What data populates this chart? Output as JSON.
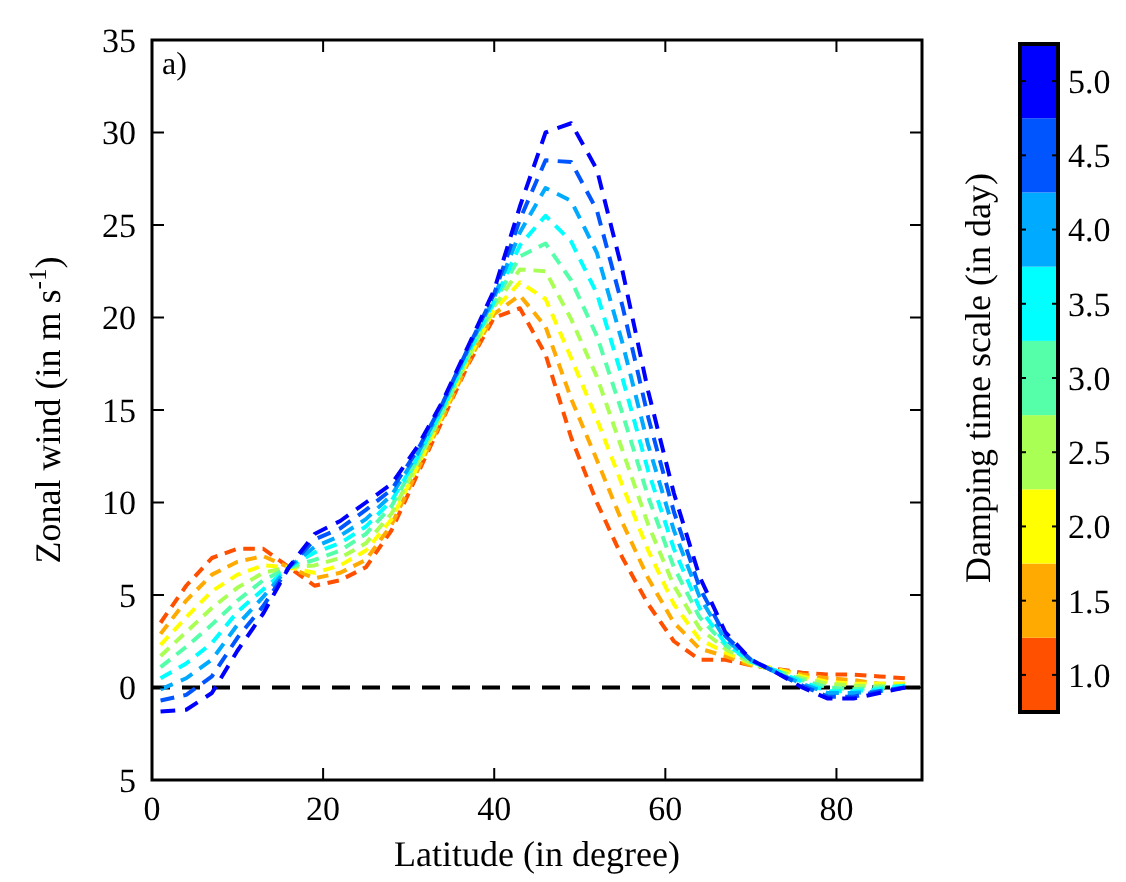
{
  "chart_data": {
    "type": "line",
    "xlabel": "Latitude (in degree)",
    "ylabel": "Zonal wind (in m s$^{-1}$)",
    "clabel": "Damping time scale (in day)",
    "x": [
      1,
      4,
      7,
      10,
      13,
      16,
      19,
      22,
      25,
      28,
      31,
      34,
      37,
      40,
      43,
      46,
      49,
      52,
      55,
      58,
      61,
      64,
      67,
      70,
      73,
      76,
      79,
      82,
      85,
      88
    ],
    "xlim": [
      0,
      90
    ],
    "xticks": [
      0,
      20,
      40,
      60,
      80
    ],
    "ylim": [
      -5,
      35
    ],
    "yticks": [
      {
        "value": -5,
        "label": "5"
      },
      0,
      5,
      10,
      15,
      20,
      25,
      30,
      35
    ],
    "clim": [
      0.75,
      5.25
    ],
    "cticks": [
      {
        "value": 1,
        "label": "1.0"
      },
      {
        "value": 1.5,
        "label": "1.5"
      },
      {
        "value": 2,
        "label": "2.0"
      },
      {
        "value": 2.5,
        "label": "2.5"
      },
      {
        "value": 3,
        "label": "3.0"
      },
      {
        "value": 3.5,
        "label": "3.5"
      },
      {
        "value": 4,
        "label": "4.0"
      },
      {
        "value": 4.5,
        "label": "4.5"
      },
      {
        "value": 5,
        "label": "5.0"
      }
    ],
    "line_style": "dashed",
    "marker": "none",
    "grid": false,
    "ref_lines": [
      {
        "axis": "y",
        "value": 0,
        "color": "#000000",
        "line_style": "dashed"
      }
    ],
    "annotations": [
      "a)"
    ],
    "series": [
      {
        "color": "#ff5000",
        "values": [
          3.5,
          5.5,
          7.0,
          7.5,
          7.5,
          6.5,
          5.5,
          5.8,
          6.5,
          8.5,
          11.5,
          14.5,
          17.5,
          20.0,
          20.5,
          18.0,
          13.5,
          10.0,
          7.0,
          4.5,
          2.5,
          1.5,
          1.5,
          1.2,
          1.0,
          0.8,
          0.7,
          0.7,
          0.6,
          0.5
        ]
      },
      {
        "color": "#ffaa00",
        "values": [
          2.9,
          4.7,
          6.1,
          6.8,
          7.1,
          6.5,
          5.9,
          6.2,
          6.9,
          8.8,
          11.7,
          14.6,
          17.6,
          20.2,
          21.2,
          19.5,
          15.6,
          12.3,
          8.9,
          5.9,
          3.5,
          2.1,
          1.7,
          1.2,
          1.0,
          0.7,
          0.5,
          0.4,
          0.2,
          0.2
        ]
      },
      {
        "color": "#ffff00",
        "values": [
          2.3,
          3.8,
          5.2,
          6.1,
          6.6,
          6.5,
          6.2,
          6.6,
          7.4,
          9.1,
          11.9,
          14.8,
          17.8,
          20.4,
          21.9,
          21.0,
          17.8,
          14.5,
          10.9,
          7.4,
          4.5,
          2.6,
          1.9,
          1.3,
          1.0,
          0.6,
          0.3,
          0.2,
          0.2,
          0.2
        ]
      },
      {
        "color": "#aaff55",
        "values": [
          1.7,
          3.0,
          4.3,
          5.4,
          6.2,
          6.5,
          6.6,
          7.0,
          7.8,
          9.4,
          12.1,
          14.9,
          17.9,
          20.6,
          22.6,
          22.5,
          19.9,
          16.8,
          12.8,
          8.8,
          5.5,
          3.2,
          2.1,
          1.3,
          0.9,
          0.5,
          0.2,
          0.1,
          0.1,
          0.1
        ]
      },
      {
        "color": "#55ffaa",
        "values": [
          1.1,
          2.2,
          3.4,
          4.7,
          5.8,
          6.5,
          6.9,
          7.4,
          8.3,
          9.8,
          12.3,
          15.0,
          18.0,
          20.8,
          23.3,
          24.0,
          22.0,
          19.0,
          14.8,
          10.3,
          6.5,
          3.8,
          2.3,
          1.4,
          0.9,
          0.4,
          0.0,
          -0.1,
          0.0,
          0.1
        ]
      },
      {
        "color": "#00ffff",
        "values": [
          0.5,
          1.3,
          2.4,
          4.1,
          5.3,
          6.5,
          7.3,
          7.8,
          8.7,
          10.1,
          12.4,
          15.1,
          18.1,
          20.9,
          23.9,
          25.5,
          24.1,
          21.3,
          16.7,
          11.7,
          7.5,
          4.3,
          2.4,
          1.4,
          0.9,
          0.3,
          -0.2,
          -0.2,
          -0.1,
          0.1
        ]
      },
      {
        "color": "#00aaff",
        "values": [
          -0.1,
          0.5,
          1.5,
          3.4,
          4.9,
          6.5,
          7.6,
          8.2,
          9.1,
          10.4,
          12.6,
          15.3,
          18.3,
          21.1,
          24.6,
          27.0,
          26.3,
          23.5,
          18.6,
          13.1,
          8.5,
          4.9,
          2.6,
          1.5,
          0.8,
          0.2,
          -0.3,
          -0.3,
          -0.2,
          0.0
        ]
      },
      {
        "color": "#0055ff",
        "values": [
          -0.7,
          -0.4,
          0.6,
          2.7,
          4.4,
          6.5,
          8.0,
          8.6,
          9.6,
          10.7,
          12.8,
          15.4,
          18.4,
          21.3,
          25.3,
          28.5,
          28.4,
          25.8,
          20.6,
          14.6,
          9.5,
          5.4,
          2.8,
          1.5,
          0.8,
          0.1,
          -0.5,
          -0.5,
          -0.2,
          0.0
        ]
      },
      {
        "color": "#0000ff",
        "values": [
          -1.3,
          -1.2,
          -0.3,
          2.0,
          4.0,
          6.5,
          8.3,
          9.0,
          10.0,
          11.0,
          13.0,
          15.5,
          18.5,
          21.5,
          26.0,
          30.0,
          30.5,
          28.0,
          22.5,
          16.0,
          10.5,
          6.0,
          3.0,
          1.5,
          0.8,
          0.0,
          -0.6,
          -0.6,
          -0.3,
          0.0
        ]
      }
    ]
  }
}
